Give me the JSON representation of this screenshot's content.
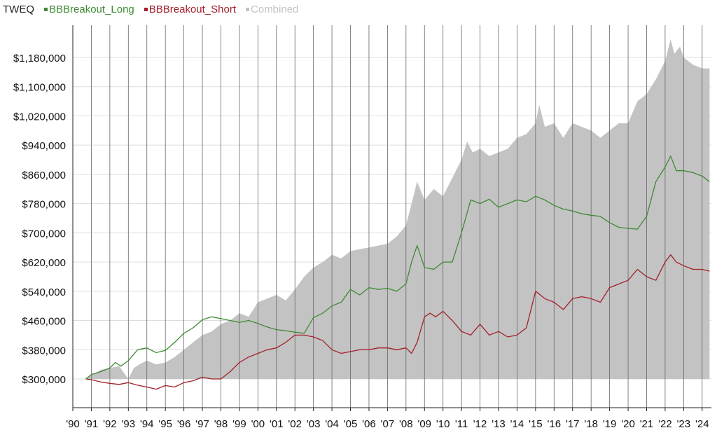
{
  "colors": {
    "long": "#3f8a34",
    "short": "#a3202a",
    "combined": "#c3c3c3",
    "axis": "#222222",
    "grid": "#dddddd",
    "vgrid": "#666666"
  },
  "chart_data": {
    "type": "area",
    "title": "TWEQ",
    "legend": [
      "BBBreakout_Long",
      "BBBreakout_Short",
      "Combined"
    ],
    "legend_placement": "top-left",
    "y_tick_labels": [
      "$300,000",
      "$380,000",
      "$460,000",
      "$540,000",
      "$620,000",
      "$700,000",
      "$780,000",
      "$860,000",
      "$940,000",
      "$1,020,000",
      "$1,100,000",
      "$1,180,000"
    ],
    "y_ticks": [
      300000,
      380000,
      460000,
      540000,
      620000,
      700000,
      780000,
      860000,
      940000,
      1020000,
      1100000,
      1180000
    ],
    "ylim": [
      300000,
      1200000
    ],
    "x_tick_labels": [
      "'90",
      "'91",
      "'92",
      "'93",
      "'94",
      "'95",
      "'96",
      "'97",
      "'98",
      "'99",
      "'00",
      "'01",
      "'02",
      "'03",
      "'04",
      "'05",
      "'06",
      "'07",
      "'08",
      "'09",
      "'10",
      "'11",
      "'12",
      "'13",
      "'14",
      "'15",
      "'16",
      "'17",
      "'18",
      "'19",
      "'20",
      "'21",
      "'22",
      "'23",
      "'24"
    ],
    "x_ticks": [
      1990,
      1991,
      1992,
      1993,
      1994,
      1995,
      1996,
      1997,
      1998,
      1999,
      2000,
      2001,
      2002,
      2003,
      2004,
      2005,
      2006,
      2007,
      2008,
      2009,
      2010,
      2011,
      2012,
      2013,
      2014,
      2015,
      2016,
      2017,
      2018,
      2019,
      2020,
      2021,
      2022,
      2023,
      2024
    ],
    "xlim": [
      1990,
      2024.5
    ],
    "grid": true,
    "series": [
      {
        "name": "Combined",
        "x": [
          1990.7,
          1991.0,
          1991.5,
          1992.0,
          1992.5,
          1993.0,
          1993.3,
          1993.6,
          1994.0,
          1994.5,
          1995.0,
          1995.5,
          1996.0,
          1996.5,
          1997.0,
          1997.5,
          1998.0,
          1998.5,
          1999.0,
          1999.5,
          2000.0,
          2000.5,
          2001.0,
          2001.5,
          2002.0,
          2002.5,
          2003.0,
          2003.5,
          2004.0,
          2004.5,
          2005.0,
          2005.5,
          2006.0,
          2006.5,
          2007.0,
          2007.5,
          2008.0,
          2008.3,
          2008.6,
          2009.0,
          2009.5,
          2010.0,
          2010.5,
          2011.0,
          2011.3,
          2011.6,
          2012.0,
          2012.5,
          2013.0,
          2013.5,
          2014.0,
          2014.5,
          2015.0,
          2015.2,
          2015.5,
          2016.0,
          2016.5,
          2017.0,
          2017.5,
          2018.0,
          2018.5,
          2019.0,
          2019.5,
          2020.0,
          2020.5,
          2021.0,
          2021.5,
          2022.0,
          2022.3,
          2022.5,
          2022.8,
          2023.0,
          2023.5,
          2024.0,
          2024.4
        ],
        "values": [
          300000,
          310000,
          325000,
          330000,
          335000,
          300000,
          330000,
          340000,
          350000,
          340000,
          345000,
          360000,
          380000,
          400000,
          420000,
          430000,
          450000,
          460000,
          480000,
          470000,
          510000,
          520000,
          530000,
          515000,
          545000,
          580000,
          605000,
          620000,
          640000,
          630000,
          650000,
          655000,
          660000,
          665000,
          670000,
          690000,
          720000,
          780000,
          840000,
          790000,
          820000,
          800000,
          850000,
          900000,
          950000,
          920000,
          930000,
          910000,
          920000,
          930000,
          960000,
          970000,
          1000000,
          1050000,
          990000,
          1000000,
          960000,
          1000000,
          990000,
          980000,
          960000,
          980000,
          1000000,
          1000000,
          1060000,
          1080000,
          1120000,
          1170000,
          1230000,
          1190000,
          1210000,
          1180000,
          1160000,
          1150000,
          1150000
        ]
      },
      {
        "name": "BBBreakout_Long",
        "x": [
          1990.7,
          1991.0,
          1991.5,
          1992.0,
          1992.3,
          1992.6,
          1993.0,
          1993.5,
          1994.0,
          1994.5,
          1995.0,
          1995.5,
          1996.0,
          1996.5,
          1997.0,
          1997.5,
          1998.0,
          1998.5,
          1999.0,
          1999.5,
          2000.0,
          2000.5,
          2001.0,
          2001.5,
          2002.0,
          2002.5,
          2003.0,
          2003.5,
          2004.0,
          2004.5,
          2005.0,
          2005.5,
          2006.0,
          2006.5,
          2007.0,
          2007.5,
          2008.0,
          2008.3,
          2008.6,
          2009.0,
          2009.5,
          2010.0,
          2010.5,
          2011.0,
          2011.5,
          2012.0,
          2012.5,
          2013.0,
          2013.5,
          2014.0,
          2014.5,
          2015.0,
          2015.5,
          2016.0,
          2016.5,
          2017.0,
          2017.5,
          2018.0,
          2018.5,
          2019.0,
          2019.5,
          2020.0,
          2020.5,
          2021.0,
          2021.5,
          2022.0,
          2022.3,
          2022.6,
          2023.0,
          2023.5,
          2024.0,
          2024.4
        ],
        "values": [
          300000,
          312000,
          320000,
          330000,
          345000,
          335000,
          350000,
          380000,
          385000,
          372000,
          378000,
          400000,
          425000,
          440000,
          462000,
          470000,
          465000,
          460000,
          455000,
          460000,
          452000,
          442000,
          435000,
          432000,
          428000,
          425000,
          468000,
          480000,
          500000,
          510000,
          545000,
          530000,
          550000,
          545000,
          548000,
          540000,
          560000,
          620000,
          665000,
          605000,
          600000,
          620000,
          620000,
          700000,
          790000,
          780000,
          792000,
          770000,
          780000,
          790000,
          785000,
          800000,
          790000,
          775000,
          765000,
          760000,
          752000,
          748000,
          745000,
          728000,
          715000,
          712000,
          710000,
          745000,
          840000,
          880000,
          910000,
          870000,
          870000,
          865000,
          855000,
          840000
        ]
      },
      {
        "name": "BBBreakout_Short",
        "x": [
          1990.7,
          1991.0,
          1991.5,
          1992.0,
          1992.5,
          1993.0,
          1993.5,
          1994.0,
          1994.5,
          1995.0,
          1995.5,
          1996.0,
          1996.5,
          1997.0,
          1997.5,
          1998.0,
          1998.5,
          1999.0,
          1999.5,
          2000.0,
          2000.5,
          2001.0,
          2001.5,
          2002.0,
          2002.5,
          2003.0,
          2003.5,
          2004.0,
          2004.5,
          2005.0,
          2005.5,
          2006.0,
          2006.5,
          2007.0,
          2007.5,
          2008.0,
          2008.3,
          2008.6,
          2009.0,
          2009.3,
          2009.6,
          2010.0,
          2010.5,
          2011.0,
          2011.5,
          2012.0,
          2012.5,
          2013.0,
          2013.5,
          2014.0,
          2014.5,
          2015.0,
          2015.5,
          2016.0,
          2016.5,
          2017.0,
          2017.5,
          2018.0,
          2018.5,
          2019.0,
          2019.5,
          2020.0,
          2020.5,
          2021.0,
          2021.5,
          2022.0,
          2022.3,
          2022.6,
          2023.0,
          2023.5,
          2024.0,
          2024.4
        ],
        "values": [
          300000,
          298000,
          292000,
          288000,
          285000,
          290000,
          283000,
          278000,
          272000,
          282000,
          278000,
          290000,
          295000,
          305000,
          300000,
          300000,
          320000,
          345000,
          360000,
          370000,
          380000,
          385000,
          400000,
          420000,
          420000,
          415000,
          405000,
          380000,
          370000,
          375000,
          380000,
          380000,
          385000,
          385000,
          380000,
          385000,
          370000,
          400000,
          470000,
          480000,
          470000,
          485000,
          460000,
          430000,
          420000,
          450000,
          420000,
          430000,
          415000,
          420000,
          440000,
          540000,
          520000,
          510000,
          490000,
          520000,
          525000,
          520000,
          510000,
          550000,
          560000,
          570000,
          600000,
          580000,
          570000,
          620000,
          640000,
          620000,
          610000,
          600000,
          600000,
          595000
        ]
      }
    ]
  }
}
